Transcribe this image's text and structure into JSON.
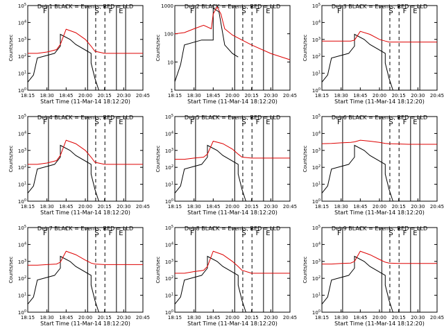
{
  "figure": {
    "xlabel": "Start Time (11-Mar-14 18:12:20)",
    "ylabel": "Counts/sec",
    "x_tick_labels": [
      "18:15",
      "18:30",
      "18:45",
      "20:00",
      "20:15",
      "20:30",
      "20:45"
    ],
    "colors": {
      "events": "#000000",
      "lld": "#dd0000",
      "axes": "#000000"
    }
  },
  "chart_data": [
    {
      "type": "line",
      "title": "Det 1 BLACK = Events, RED = LLD",
      "xlim": [
        0,
        6
      ],
      "yscale": "log",
      "ylim": [
        1,
        100000
      ],
      "y_tick_labels": [
        "10^0",
        "10^1",
        "10^2",
        "10^3",
        "10^4",
        "10^5"
      ],
      "marker_labels": [
        "F",
        "S",
        "F",
        "E"
      ],
      "series": [
        {
          "name": "Events",
          "x": [
            0.0,
            0.3,
            0.5,
            1.4,
            1.7,
            1.7,
            2.2,
            2.5,
            3.3,
            3.3,
            3.5,
            3.7
          ],
          "y": [
            3,
            8,
            80,
            150,
            400,
            2000,
            1000,
            500,
            150,
            40,
            5,
            1
          ]
        },
        {
          "name": "LLD",
          "x": [
            0.0,
            0.5,
            1.0,
            1.5,
            1.7,
            2.0,
            2.5,
            3.0,
            3.3,
            3.5,
            4.0,
            4.5,
            5.0,
            5.5,
            6.0
          ],
          "y": [
            150,
            150,
            180,
            250,
            500,
            4000,
            2500,
            1000,
            400,
            200,
            150,
            150,
            150,
            150,
            150
          ]
        }
      ]
    },
    {
      "type": "line",
      "title": "Det 2 BLACK = Events, RED = LLD",
      "xlim": [
        0,
        6
      ],
      "yscale": "log",
      "ylim": [
        1,
        1000
      ],
      "y_tick_labels": [
        "1",
        "10",
        "100",
        "1000"
      ],
      "marker_labels": [
        "F",
        "S",
        "F",
        "E"
      ],
      "series": [
        {
          "name": "Events",
          "x": [
            0.0,
            0.3,
            0.5,
            1.4,
            2.0,
            2.0,
            2.3,
            2.6,
            3.0,
            3.3
          ],
          "y": [
            2,
            8,
            40,
            60,
            60,
            800,
            600,
            40,
            20,
            15
          ]
        },
        {
          "name": "LLD",
          "x": [
            0.0,
            0.5,
            1.0,
            1.5,
            1.9,
            2.0,
            2.2,
            2.4,
            2.6,
            3.0,
            3.5,
            4.0,
            5.0,
            6.0
          ],
          "y": [
            100,
            110,
            150,
            200,
            150,
            500,
            900,
            500,
            150,
            90,
            60,
            40,
            20,
            12
          ]
        }
      ]
    },
    {
      "type": "line",
      "title": "Det 3 BLACK = Events, RED = LLD",
      "xlim": [
        0,
        6
      ],
      "yscale": "log",
      "ylim": [
        1,
        100000
      ],
      "y_tick_labels": [
        "10^0",
        "10^1",
        "10^2",
        "10^3",
        "10^4",
        "10^5"
      ],
      "marker_labels": [
        "F",
        "S",
        "F",
        "E"
      ],
      "series": [
        {
          "name": "Events",
          "x": [
            0.0,
            0.3,
            0.5,
            1.4,
            1.7,
            1.7,
            2.2,
            2.5,
            3.3,
            3.3,
            3.5,
            3.7
          ],
          "y": [
            3,
            8,
            80,
            150,
            400,
            2000,
            1000,
            500,
            150,
            40,
            5,
            1
          ]
        },
        {
          "name": "LLD",
          "x": [
            0.0,
            0.5,
            1.0,
            1.5,
            1.7,
            2.0,
            2.5,
            3.0,
            3.3,
            3.5,
            4.0,
            4.5,
            5.0,
            5.5,
            6.0
          ],
          "y": [
            800,
            800,
            800,
            800,
            900,
            3000,
            2000,
            1000,
            800,
            700,
            700,
            700,
            700,
            700,
            700
          ]
        }
      ]
    },
    {
      "type": "line",
      "title": "Det 4 BLACK = Events, RED = LLD",
      "xlim": [
        0,
        6
      ],
      "yscale": "log",
      "ylim": [
        1,
        100000
      ],
      "y_tick_labels": [
        "10^0",
        "10^1",
        "10^2",
        "10^3",
        "10^4",
        "10^5"
      ],
      "marker_labels": [
        "F",
        "S",
        "F",
        "E"
      ],
      "series": [
        {
          "name": "Events",
          "x": [
            0.0,
            0.3,
            0.5,
            1.4,
            1.7,
            1.7,
            2.2,
            2.5,
            3.3,
            3.3,
            3.5,
            3.7
          ],
          "y": [
            3,
            8,
            80,
            150,
            400,
            2000,
            1000,
            500,
            150,
            40,
            5,
            1
          ]
        },
        {
          "name": "LLD",
          "x": [
            0.0,
            0.5,
            1.0,
            1.5,
            1.7,
            2.0,
            2.5,
            3.0,
            3.3,
            3.5,
            4.0,
            4.5,
            5.0,
            5.5,
            6.0
          ],
          "y": [
            150,
            150,
            180,
            250,
            500,
            4000,
            2500,
            1000,
            400,
            200,
            150,
            150,
            150,
            150,
            150
          ]
        }
      ]
    },
    {
      "type": "line",
      "title": "Det 5 BLACK = Events, RED = LLD",
      "xlim": [
        0,
        6
      ],
      "yscale": "log",
      "ylim": [
        1,
        100000
      ],
      "y_tick_labels": [
        "10^0",
        "10^1",
        "10^2",
        "10^3",
        "10^4",
        "10^5"
      ],
      "marker_labels": [
        "F",
        "S",
        "F",
        "E"
      ],
      "series": [
        {
          "name": "Events",
          "x": [
            0.0,
            0.3,
            0.5,
            1.4,
            1.7,
            1.7,
            2.2,
            2.5,
            3.3,
            3.3,
            3.5,
            3.7
          ],
          "y": [
            3,
            8,
            80,
            150,
            400,
            2000,
            1000,
            500,
            150,
            40,
            5,
            1
          ]
        },
        {
          "name": "LLD",
          "x": [
            0.0,
            0.5,
            1.0,
            1.5,
            1.7,
            2.0,
            2.5,
            3.0,
            3.3,
            3.5,
            4.0,
            4.5,
            5.0,
            5.5,
            6.0
          ],
          "y": [
            300,
            300,
            350,
            400,
            600,
            3500,
            2500,
            1200,
            600,
            400,
            350,
            350,
            350,
            350,
            350
          ]
        }
      ]
    },
    {
      "type": "line",
      "title": "Det 6 BLACK = Events, RED = LLD",
      "xlim": [
        0,
        6
      ],
      "yscale": "log",
      "ylim": [
        1,
        100000
      ],
      "y_tick_labels": [
        "10^0",
        "10^1",
        "10^2",
        "10^3",
        "10^4",
        "10^5"
      ],
      "marker_labels": [
        "F",
        "S",
        "F",
        "E"
      ],
      "series": [
        {
          "name": "Events",
          "x": [
            0.0,
            0.3,
            0.5,
            1.4,
            1.7,
            1.7,
            2.2,
            2.5,
            3.3,
            3.3,
            3.5,
            3.7
          ],
          "y": [
            3,
            8,
            80,
            150,
            400,
            2000,
            1000,
            500,
            150,
            40,
            5,
            1
          ]
        },
        {
          "name": "LLD",
          "x": [
            0.0,
            0.5,
            1.0,
            1.5,
            1.7,
            2.0,
            2.5,
            3.0,
            3.3,
            3.5,
            4.0,
            4.5,
            5.0,
            5.5,
            6.0
          ],
          "y": [
            2500,
            2600,
            2800,
            3000,
            3200,
            4000,
            3500,
            3000,
            2600,
            2500,
            2400,
            2300,
            2300,
            2300,
            2300
          ]
        }
      ]
    },
    {
      "type": "line",
      "title": "Det 7 BLACK = Events, RED = LLD",
      "xlim": [
        0,
        6
      ],
      "yscale": "log",
      "ylim": [
        1,
        100000
      ],
      "y_tick_labels": [
        "10^0",
        "10^1",
        "10^2",
        "10^3",
        "10^4",
        "10^5"
      ],
      "marker_labels": [
        "F",
        "S",
        "F",
        "E"
      ],
      "series": [
        {
          "name": "Events",
          "x": [
            0.0,
            0.3,
            0.5,
            1.4,
            1.7,
            1.7,
            2.2,
            2.5,
            3.3,
            3.3,
            3.5,
            3.7
          ],
          "y": [
            3,
            8,
            80,
            150,
            400,
            2000,
            1000,
            500,
            150,
            40,
            5,
            1
          ]
        },
        {
          "name": "LLD",
          "x": [
            0.0,
            0.5,
            1.0,
            1.5,
            1.7,
            2.0,
            2.5,
            3.0,
            3.3,
            3.5,
            4.0,
            4.5,
            5.0,
            5.5,
            6.0
          ],
          "y": [
            600,
            600,
            650,
            700,
            900,
            4000,
            2500,
            1200,
            800,
            700,
            650,
            650,
            650,
            650,
            650
          ]
        }
      ]
    },
    {
      "type": "line",
      "title": "Det 8 BLACK = Events, RED = LLD",
      "xlim": [
        0,
        6
      ],
      "yscale": "log",
      "ylim": [
        1,
        100000
      ],
      "y_tick_labels": [
        "10^0",
        "10^1",
        "10^2",
        "10^3",
        "10^4",
        "10^5"
      ],
      "marker_labels": [
        "F",
        "S",
        "F",
        "E"
      ],
      "series": [
        {
          "name": "Events",
          "x": [
            0.0,
            0.3,
            0.5,
            1.4,
            1.7,
            1.7,
            2.2,
            2.5,
            3.3,
            3.3,
            3.5,
            3.7
          ],
          "y": [
            3,
            8,
            80,
            150,
            400,
            2000,
            1000,
            500,
            150,
            40,
            5,
            1
          ]
        },
        {
          "name": "LLD",
          "x": [
            0.0,
            0.5,
            1.0,
            1.5,
            1.7,
            2.0,
            2.5,
            3.0,
            3.3,
            3.5,
            4.0,
            4.5,
            5.0,
            5.5,
            6.0
          ],
          "y": [
            200,
            200,
            250,
            300,
            500,
            4000,
            2500,
            1000,
            500,
            300,
            200,
            200,
            200,
            200,
            200
          ]
        }
      ]
    },
    {
      "type": "line",
      "title": "Det 9 BLACK = Events, RED = LLD",
      "xlim": [
        0,
        6
      ],
      "yscale": "log",
      "ylim": [
        1,
        100000
      ],
      "y_tick_labels": [
        "10^0",
        "10^1",
        "10^2",
        "10^3",
        "10^4",
        "10^5"
      ],
      "marker_labels": [
        "F",
        "S",
        "F",
        "E"
      ],
      "series": [
        {
          "name": "Events",
          "x": [
            0.0,
            0.3,
            0.5,
            1.4,
            1.7,
            1.7,
            2.2,
            2.5,
            3.3,
            3.3,
            3.5,
            3.7
          ],
          "y": [
            3,
            8,
            80,
            150,
            400,
            2000,
            1000,
            500,
            150,
            40,
            5,
            1
          ]
        },
        {
          "name": "LLD",
          "x": [
            0.0,
            0.5,
            1.0,
            1.5,
            1.7,
            2.0,
            2.5,
            3.0,
            3.3,
            3.5,
            4.0,
            4.5,
            5.0,
            5.5,
            6.0
          ],
          "y": [
            700,
            700,
            750,
            800,
            1000,
            4000,
            2500,
            1300,
            900,
            800,
            750,
            750,
            750,
            750,
            750
          ]
        }
      ]
    }
  ]
}
